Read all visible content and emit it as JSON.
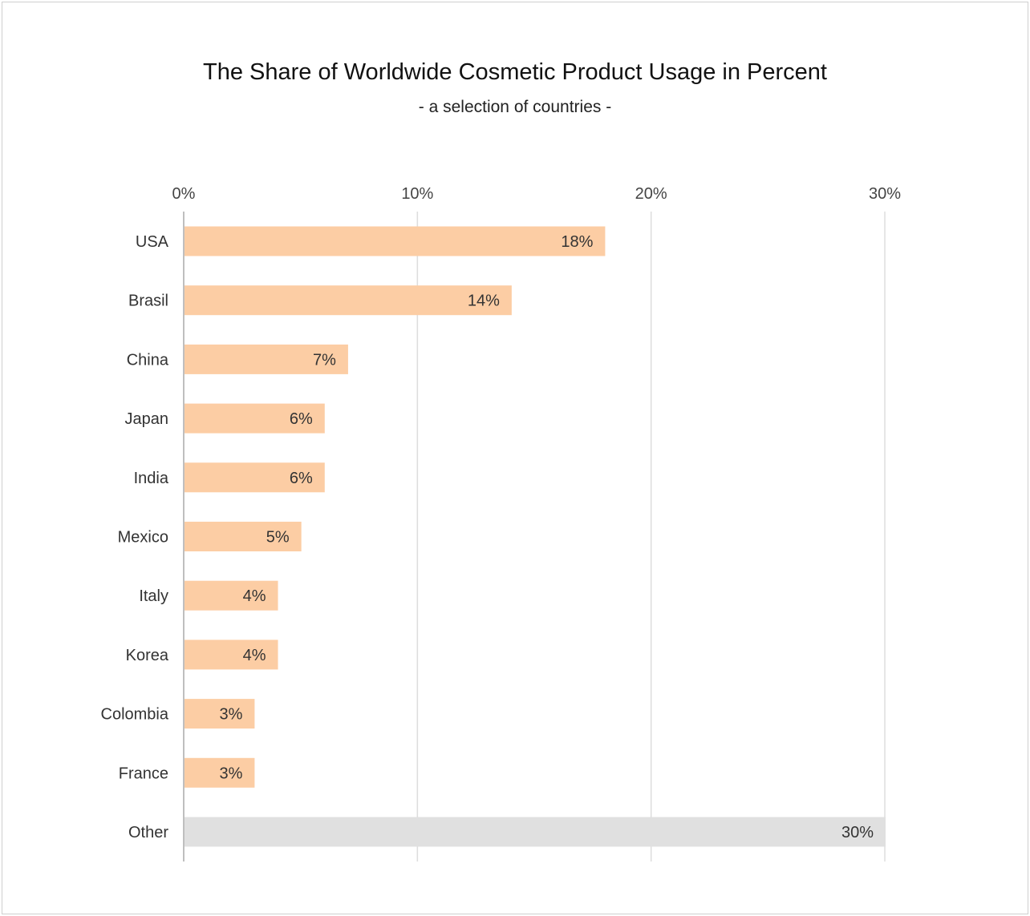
{
  "chart_data": {
    "type": "bar",
    "orientation": "horizontal",
    "title": "The Share of Worldwide Cosmetic Product Usage in Percent",
    "subtitle": "- a selection of countries -",
    "categories": [
      "USA",
      "Brasil",
      "China",
      "Japan",
      "India",
      "Mexico",
      "Italy",
      "Korea",
      "Colombia",
      "France",
      "Other"
    ],
    "values": [
      18,
      14,
      7,
      6,
      6,
      5,
      4,
      4,
      3,
      3,
      30
    ],
    "data_labels": [
      "18%",
      "14%",
      "7%",
      "6%",
      "6%",
      "5%",
      "4%",
      "4%",
      "3%",
      "3%",
      "30%"
    ],
    "xlim": [
      0,
      30
    ],
    "ticks": [
      0,
      10,
      20,
      30
    ],
    "tick_labels": [
      "0%",
      "10%",
      "20%",
      "30%"
    ],
    "x_axis_position": "top",
    "grid": true,
    "legend": "none",
    "colors": {
      "bar": "#fccda4",
      "other_bar": "#e0e0e0",
      "grid": "#dddddd",
      "axis": "#aaaaaa"
    }
  }
}
